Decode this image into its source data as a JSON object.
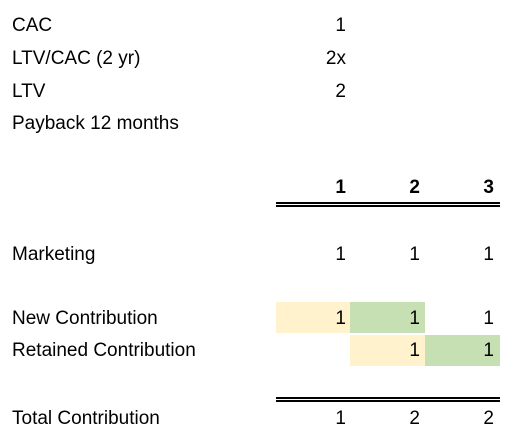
{
  "assumptions": [
    {
      "label": "CAC",
      "value": "1"
    },
    {
      "label": "LTV/CAC (2 yr)",
      "value": "2x"
    },
    {
      "label": "LTV",
      "value": "2"
    },
    {
      "label": "Payback 12 months",
      "value": ""
    }
  ],
  "header_periods": [
    "1",
    "2",
    "3"
  ],
  "rows": {
    "marketing": {
      "label": "Marketing",
      "values": [
        "1",
        "1",
        "1"
      ]
    },
    "new_contribution": {
      "label": "New Contribution",
      "values": [
        "1",
        "1",
        "1"
      ]
    },
    "retained_contribution": {
      "label": "Retained Contribution",
      "values": [
        "",
        "1",
        "1"
      ]
    },
    "total_contribution": {
      "label": "Total Contribution",
      "values": [
        "1",
        "2",
        "2"
      ]
    }
  },
  "colors": {
    "light_yellow": "#fff2cc",
    "light_green": "#c6e0b4"
  }
}
